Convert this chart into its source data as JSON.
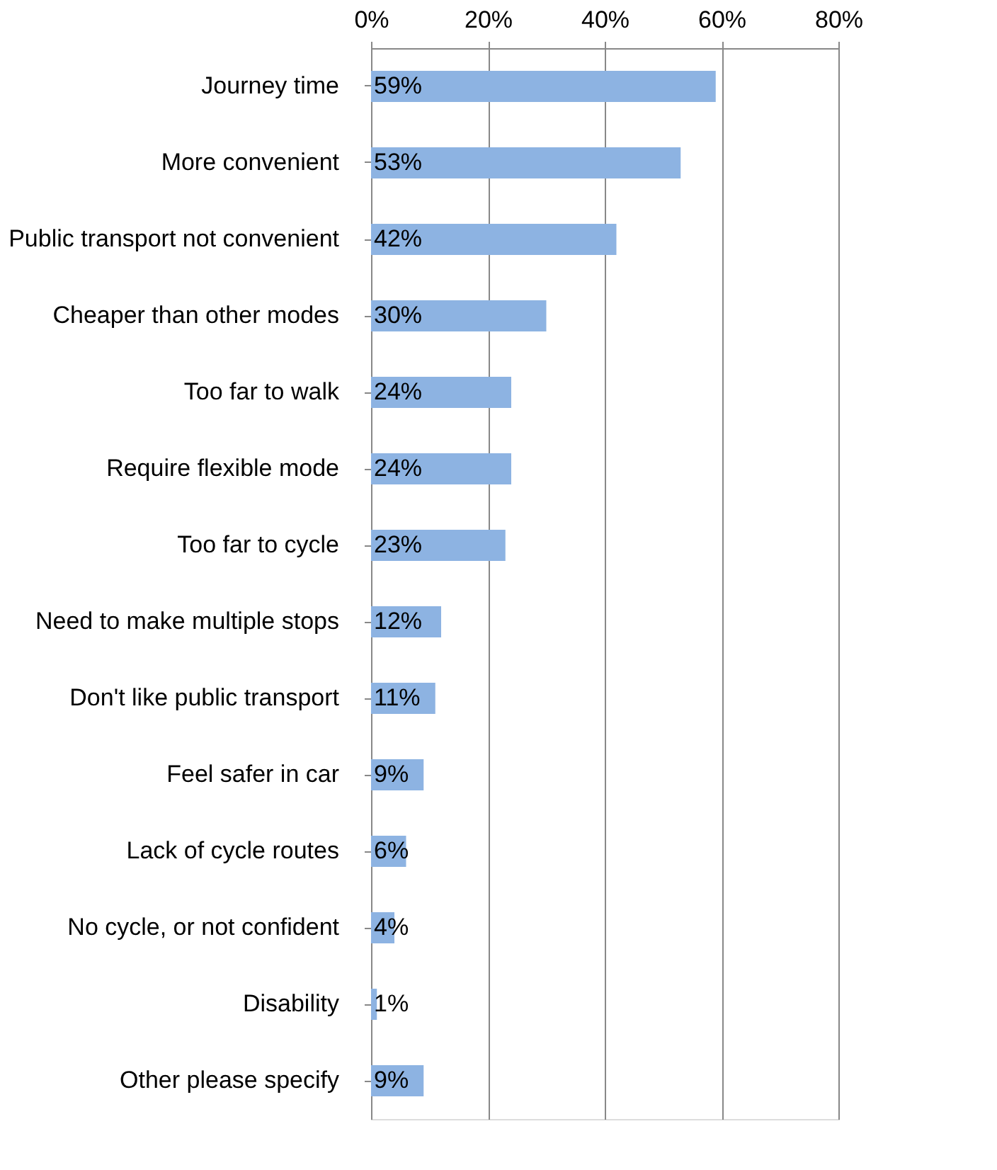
{
  "chart_data": {
    "type": "bar",
    "orientation": "horizontal",
    "categories": [
      "Journey time",
      "More convenient",
      "Public transport not convenient",
      "Cheaper than other modes",
      "Too far to walk",
      "Require flexible mode",
      "Too far to cycle",
      "Need to make multiple stops",
      "Don't like public transport",
      "Feel safer in car",
      "Lack of cycle routes",
      "No cycle, or not confident",
      "Disability",
      "Other please specify"
    ],
    "values": [
      59,
      53,
      42,
      30,
      24,
      24,
      23,
      12,
      11,
      9,
      6,
      4,
      1,
      9
    ],
    "value_labels": [
      "59%",
      "53%",
      "42%",
      "30%",
      "24%",
      "24%",
      "23%",
      "12%",
      "11%",
      "9%",
      "6%",
      "4%",
      "1%",
      "9%"
    ],
    "color": "#8db3e2",
    "xlim": [
      0,
      80
    ],
    "xticks": [
      {
        "value": 0,
        "label": "0%"
      },
      {
        "value": 20,
        "label": "20%"
      },
      {
        "value": 40,
        "label": "40%"
      },
      {
        "value": 60,
        "label": "60%"
      },
      {
        "value": 80,
        "label": "80%"
      }
    ],
    "grid": "x"
  }
}
